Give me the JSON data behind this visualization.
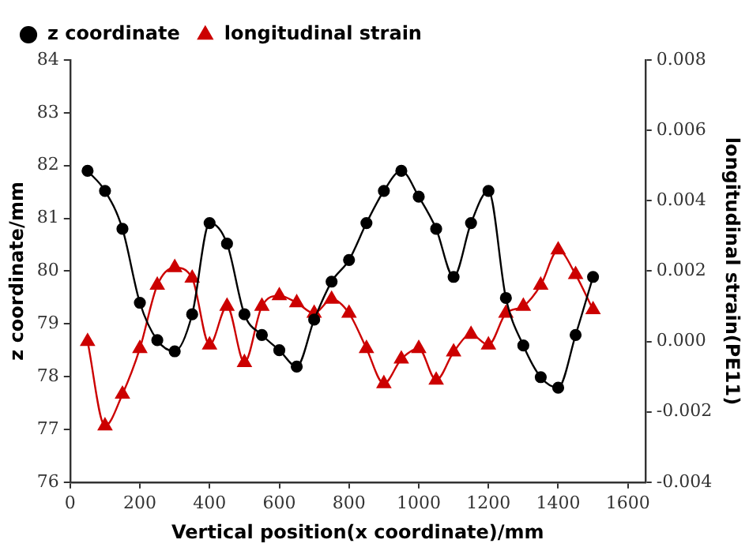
{
  "chart_data": {
    "type": "line",
    "xlabel": "Vertical position(x coordinate)/mm",
    "ylabel": "z coordinate/mm",
    "y2label": "longitudinal strain(PE11)",
    "x": [
      50,
      100,
      150,
      200,
      250,
      300,
      350,
      400,
      450,
      500,
      550,
      600,
      650,
      700,
      750,
      800,
      850,
      900,
      950,
      1000,
      1050,
      1100,
      1150,
      1200,
      1250,
      1300,
      1350,
      1400,
      1450,
      1500
    ],
    "series": [
      {
        "name": "z coordinate",
        "color": "#000000",
        "marker": "circle",
        "values": [
          81.9,
          81.52,
          80.8,
          79.4,
          78.69,
          78.48,
          79.18,
          80.91,
          80.52,
          79.18,
          78.79,
          78.5,
          78.19,
          79.08,
          79.8,
          80.21,
          80.91,
          81.52,
          81.9,
          81.41,
          80.8,
          79.89,
          80.91,
          81.52,
          79.49,
          78.59,
          77.99,
          77.79,
          78.79,
          79.89
        ]
      },
      {
        "name": "longitudinal strain",
        "color": "#cc0000",
        "marker": "triangle",
        "axis": "y2",
        "values": [
          0.0,
          -0.0024,
          -0.0015,
          -0.0002,
          0.0016,
          0.0021,
          0.0018,
          -0.0001,
          0.001,
          -0.0006,
          0.001,
          0.0013,
          0.0011,
          0.0008,
          0.0012,
          0.0008,
          -0.0002,
          -0.0012,
          -0.0005,
          -0.0002,
          -0.0011,
          -0.0003,
          0.0002,
          -0.0001,
          0.0008,
          0.001,
          0.0016,
          0.0026,
          0.0019,
          0.0009
        ]
      }
    ],
    "xlim": [
      0,
      1650
    ],
    "xticks": [
      0,
      200,
      400,
      600,
      800,
      1000,
      1200,
      1400,
      1600
    ],
    "ylim": [
      76,
      84
    ],
    "yticks": [
      76,
      77,
      78,
      79,
      80,
      81,
      82,
      83,
      84
    ],
    "y2lim": [
      -0.004,
      0.008
    ],
    "y2ticks": [
      {
        "value": -0.004,
        "label": "-0.004"
      },
      {
        "value": -0.002,
        "label": "-0.002"
      },
      {
        "value": 0,
        "label": "0.000"
      },
      {
        "value": 0.002,
        "label": "0.002"
      },
      {
        "value": 0.004,
        "label": "0.004"
      },
      {
        "value": 0.006,
        "label": "0.006"
      },
      {
        "value": 0.008,
        "label": "0.008"
      }
    ],
    "grid": false,
    "legend": "top left"
  }
}
